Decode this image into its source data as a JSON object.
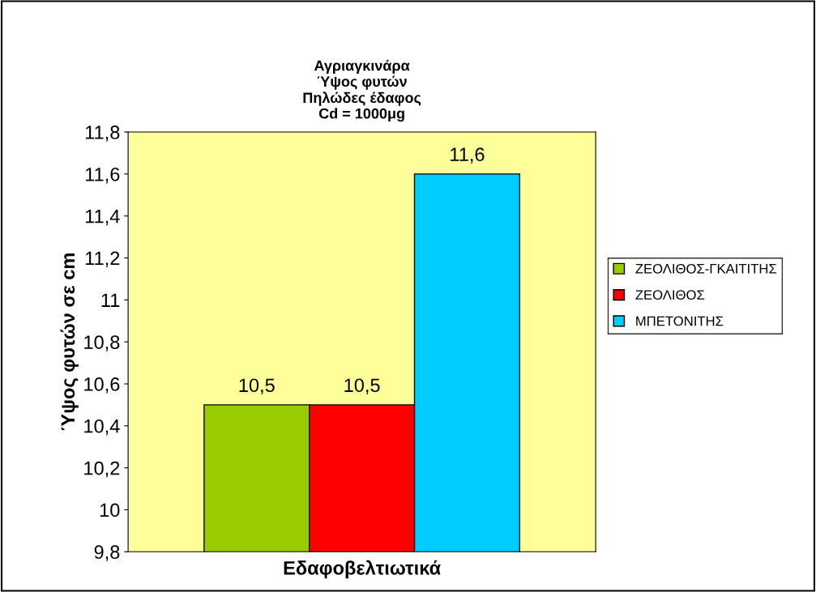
{
  "chart_data": {
    "type": "bar",
    "title": "Αγριαγκινάρα\nΎψος φυτών\nΠηλώδες έδαφος\nCd = 1000μg",
    "xlabel": "Εδαφοβελτιωτικά",
    "ylabel": "Ύψος φυτών σε cm",
    "categories": [
      null
    ],
    "series": [
      {
        "name": "ΖΕΟΛΙΘΟΣ-ΓΚΑΙΤΙΤΗΣ",
        "color": "#99cc00",
        "values": [
          10.5
        ],
        "value_labels": [
          "10,5"
        ]
      },
      {
        "name": "ΖΕΟΛΙΘΟΣ",
        "color": "#ff0000",
        "values": [
          10.5
        ],
        "value_labels": [
          "10,5"
        ]
      },
      {
        "name": "ΜΠΕΤΟΝΙΤΗΣ",
        "color": "#00ccff",
        "values": [
          11.6
        ],
        "value_labels": [
          "11,6"
        ]
      }
    ],
    "ylim": [
      9.8,
      11.8
    ],
    "yticks": [
      {
        "value": 9.8,
        "label": "9,8"
      },
      10,
      {
        "value": 10.2,
        "label": "10,2"
      },
      {
        "value": 10.4,
        "label": "10,4"
      },
      {
        "value": 10.6,
        "label": "10,6"
      },
      {
        "value": 10.8,
        "label": "10,8"
      },
      11,
      {
        "value": 11.2,
        "label": "11,2"
      },
      {
        "value": 11.4,
        "label": "11,4"
      },
      {
        "value": 11.6,
        "label": "11,6"
      },
      {
        "value": 11.8,
        "label": "11,8"
      }
    ],
    "grid": false,
    "legend": "right"
  }
}
